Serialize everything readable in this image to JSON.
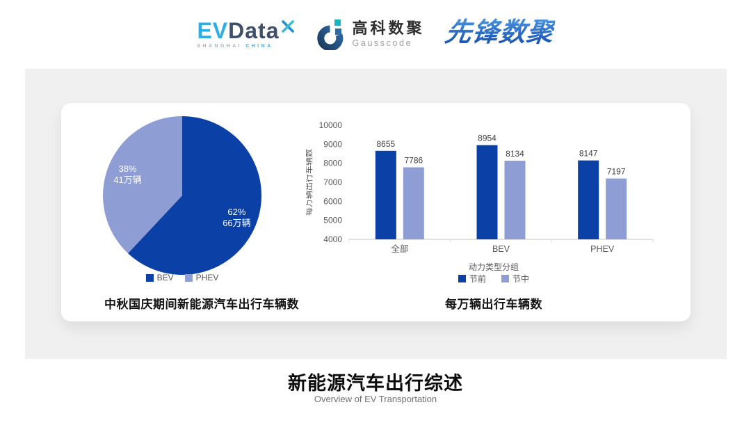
{
  "header": {
    "evdata_logo": {
      "ev": "EV",
      "data": "Data",
      "x_icon": "x-star-icon",
      "sub_left": "SHANGHAI",
      "sub_right": "CHINA"
    },
    "gausscode_logo": {
      "icon": "g-ring-icon",
      "cn": "高科数聚",
      "en": "Gausscode"
    },
    "xianfeng_logo": {
      "text": "先锋数聚"
    }
  },
  "colors": {
    "series_dark_blue": "#0b41a6",
    "series_lavender": "#8f9dd5",
    "evdata_cyan": "#2aaee5",
    "evdata_slate": "#40506b",
    "gausscode_navy": "#1d4976",
    "gausscode_teal": "#16b5c0",
    "xianfeng_blue": "#2a72c8",
    "panel_gray": "#f0f0f1",
    "axis_gray": "#d9d9d9"
  },
  "chart_data": [
    {
      "type": "pie",
      "title": "中秋国庆期间新能源汽车出行车辆数",
      "slices": [
        {
          "label": "BEV",
          "percent": 62,
          "value_label": "66万辆",
          "color": "#0b41a6"
        },
        {
          "label": "PHEV",
          "percent": 38,
          "value_label": "41万辆",
          "color": "#8f9dd5"
        }
      ],
      "legend_position": "bottom",
      "label_color": "#ffffff",
      "start_angle_deg": 0,
      "direction": "clockwise"
    },
    {
      "type": "bar",
      "title": "每万辆出行车辆数",
      "categories": [
        "全部",
        "BEV",
        "PHEV"
      ],
      "series": [
        {
          "name": "节前",
          "color": "#0b41a6",
          "values": [
            8655,
            8954,
            8147
          ]
        },
        {
          "name": "节中",
          "color": "#8f9dd5",
          "values": [
            7786,
            8134,
            7197
          ]
        }
      ],
      "xlabel": "动力类型分组",
      "ylabel": "每万辆出行车辆数",
      "ylim": [
        4000,
        10000
      ],
      "ytick_step": 1000,
      "grid": false,
      "legend_position": "bottom"
    }
  ],
  "footer": {
    "title": "新能源汽车出行综述",
    "subtitle": "Overview of EV Transportation"
  }
}
